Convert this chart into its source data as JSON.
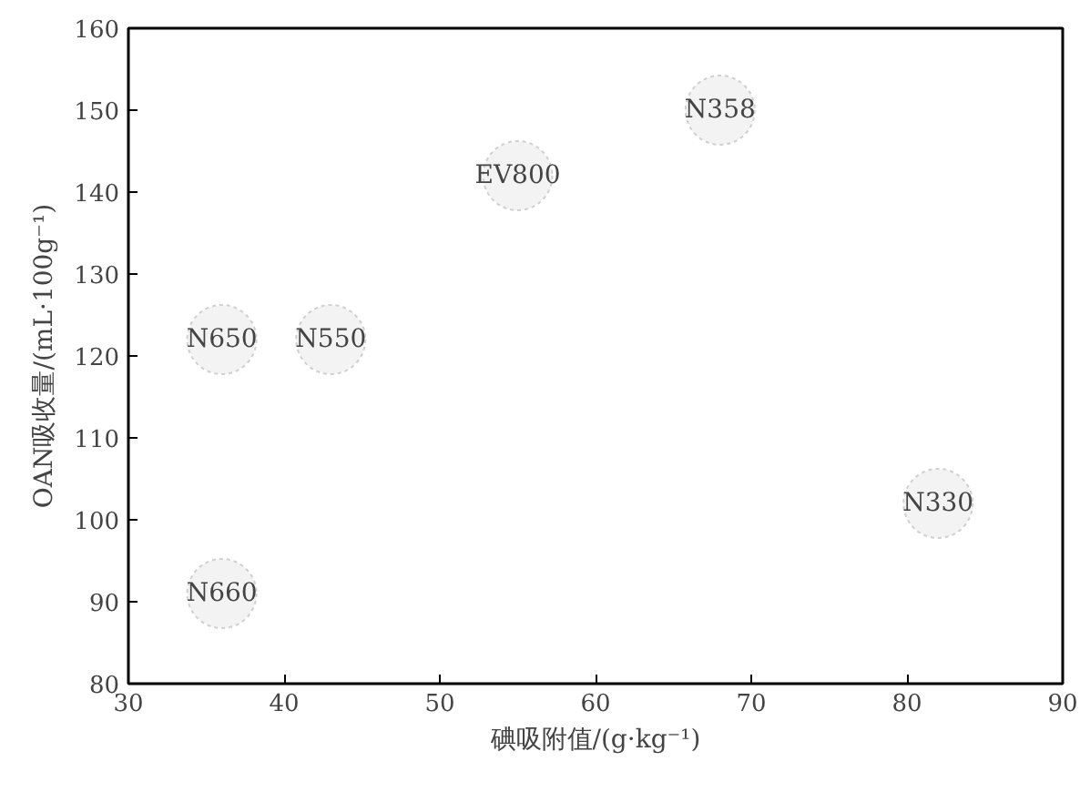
{
  "chart_data": {
    "type": "scatter",
    "xlabel": "碘吸附值/(g·kg⁻¹)",
    "ylabel": "OAN吸收量/(mL·100g⁻¹)",
    "x": [
      68,
      55,
      36,
      43,
      82,
      36
    ],
    "series": [
      {
        "color": "#d0d0d0",
        "values": [
          150,
          142,
          122,
          122,
          102,
          91
        ]
      }
    ],
    "marker": "circle",
    "annotations": [
      {
        "text": "N358",
        "x": 68,
        "y": 150
      },
      {
        "text": "EV800",
        "x": 55,
        "y": 142
      },
      {
        "text": "N650",
        "x": 36,
        "y": 122
      },
      {
        "text": "N550",
        "x": 43,
        "y": 122
      },
      {
        "text": "N330",
        "x": 82,
        "y": 102
      },
      {
        "text": "N660",
        "x": 36,
        "y": 91
      }
    ],
    "xlim": [
      30,
      90
    ],
    "xticks": [
      30,
      40,
      50,
      60,
      70,
      80,
      90
    ],
    "ylim": [
      80,
      160
    ],
    "yticks": [
      80,
      90,
      100,
      110,
      120,
      130,
      140,
      150,
      160
    ]
  }
}
